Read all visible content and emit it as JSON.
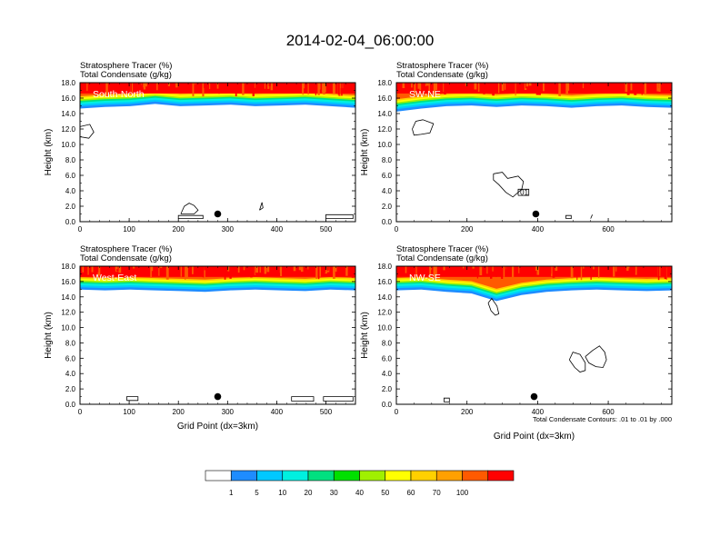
{
  "figure_title": "2014-02-04_06:00:00",
  "footnote": "Total Condensate Contours: .01 to .01 by .000",
  "colors": {
    "scale": [
      "#ffffff",
      "#1e8cff",
      "#00c8ff",
      "#00f0e0",
      "#00e080",
      "#00e000",
      "#a0f000",
      "#ffff00",
      "#ffd000",
      "#ffa000",
      "#ff5a00",
      "#ff0000"
    ],
    "marker": "#000000",
    "contour": "#000000"
  },
  "chart_data": [
    {
      "type": "heatmap",
      "panel_label": "South-North",
      "title_lines": [
        "Stratosphere Tracer   (%)",
        "Total Condensate   (g/kg)"
      ],
      "ylabel": "Height (km)",
      "xlabel": "",
      "xlim": [
        0,
        560
      ],
      "ylim": [
        0,
        18
      ],
      "xticks": [
        "0",
        "100",
        "200",
        "300",
        "400",
        "500"
      ],
      "yticks": [
        "0.0",
        "2.0",
        "4.0",
        "6.0",
        "8.0",
        "10.0",
        "12.0",
        "14.0",
        "16.0",
        "18.0"
      ],
      "tracer_base_km": [
        15.0,
        15.2,
        15.3,
        15.6,
        15.3,
        15.4,
        15.5,
        15.3,
        15.4,
        15.5,
        15.3,
        15.1
      ],
      "marker": {
        "x": 280,
        "y": 1.0
      }
    },
    {
      "type": "heatmap",
      "panel_label": "SW-NE",
      "title_lines": [
        "Stratosphere Tracer   (%)",
        "Total Condensate   (g/kg)"
      ],
      "ylabel": "Height (km)",
      "xlabel": "",
      "xlim": [
        0,
        780
      ],
      "ylim": [
        0,
        18
      ],
      "xticks": [
        "0",
        "200",
        "400",
        "600"
      ],
      "yticks": [
        "0.0",
        "2.0",
        "4.0",
        "6.0",
        "8.0",
        "10.0",
        "12.0",
        "14.0",
        "16.0",
        "18.0"
      ],
      "tracer_base_km": [
        14.6,
        15.0,
        15.3,
        15.4,
        15.2,
        15.4,
        15.3,
        15.1,
        15.3,
        15.4,
        15.2,
        15.1
      ],
      "marker": {
        "x": 395,
        "y": 1.0
      },
      "contour_label": "01"
    },
    {
      "type": "heatmap",
      "panel_label": "West-East",
      "title_lines": [
        "Stratosphere Tracer   (%)",
        "Total Condensate   (g/kg)"
      ],
      "ylabel": "Height (km)",
      "xlabel": "Grid Point (dx=3km)",
      "xlim": [
        0,
        560
      ],
      "ylim": [
        0,
        18
      ],
      "xticks": [
        "0",
        "100",
        "200",
        "300",
        "400",
        "500"
      ],
      "yticks": [
        "0.0",
        "2.0",
        "4.0",
        "6.0",
        "8.0",
        "10.0",
        "12.0",
        "14.0",
        "16.0",
        "18.0"
      ],
      "tracer_base_km": [
        15.3,
        15.2,
        15.3,
        15.2,
        15.1,
        15.0,
        15.2,
        15.3,
        15.2,
        15.1,
        15.3,
        15.2
      ],
      "marker": {
        "x": 280,
        "y": 1.0
      }
    },
    {
      "type": "heatmap",
      "panel_label": "NW-SE",
      "title_lines": [
        "Stratosphere Tracer   (%)",
        "Total Condensate   (g/kg)"
      ],
      "ylabel": "Height (km)",
      "xlabel": "Grid Point (dx=3km)",
      "xlim": [
        0,
        780
      ],
      "ylim": [
        0,
        18
      ],
      "xticks": [
        "0",
        "200",
        "400",
        "600"
      ],
      "yticks": [
        "0.0",
        "2.0",
        "4.0",
        "6.0",
        "8.0",
        "10.0",
        "12.0",
        "14.0",
        "16.0",
        "18.0"
      ],
      "tracer_base_km": [
        15.2,
        15.3,
        15.0,
        14.8,
        13.8,
        14.6,
        15.0,
        15.2,
        15.3,
        15.2,
        15.1,
        15.2
      ],
      "marker": {
        "x": 390,
        "y": 1.0
      }
    }
  ],
  "colorbar": {
    "labels": [
      "1",
      "5",
      "10",
      "20",
      "30",
      "40",
      "50",
      "60",
      "70",
      "100"
    ],
    "colors": [
      "#ffffff",
      "#1e8cff",
      "#00c8ff",
      "#00f0e0",
      "#00e080",
      "#00e000",
      "#a0f000",
      "#ffff00",
      "#ffd000",
      "#ffa000",
      "#ff5a00",
      "#ff0000"
    ]
  }
}
